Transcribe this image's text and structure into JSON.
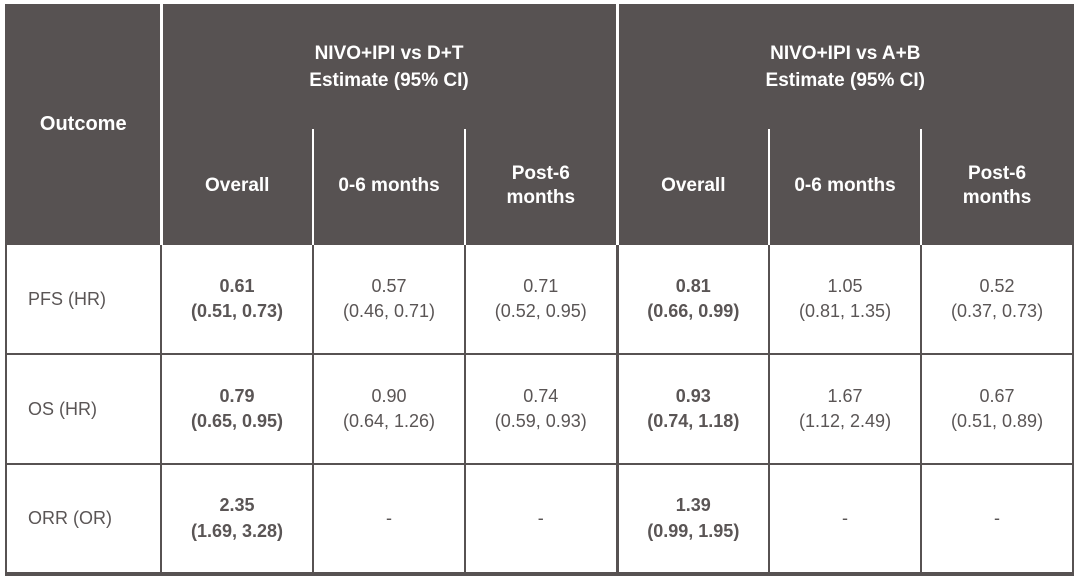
{
  "colors": {
    "header_bg": "#575252",
    "grid": "#575252",
    "body_text": "#5a5555",
    "header_text": "#ffffff",
    "background": "#ffffff"
  },
  "chart_data": {
    "type": "table",
    "header": {
      "outcome": "Outcome",
      "groups": [
        {
          "title": "NIVO+IPI vs D+T",
          "subtitle": "Estimate (95% CI)",
          "columns": [
            "Overall",
            "0-6 months",
            "Post-6 months"
          ]
        },
        {
          "title": "NIVO+IPI vs A+B",
          "subtitle": "Estimate (95% CI)",
          "columns": [
            "Overall",
            "0-6 months",
            "Post-6 months"
          ]
        }
      ]
    },
    "rows": [
      {
        "outcome": "PFS (HR)",
        "values": [
          {
            "estimate": "0.61",
            "ci": "(0.51, 0.73)"
          },
          {
            "estimate": "0.57",
            "ci": "(0.46, 0.71)"
          },
          {
            "estimate": "0.71",
            "ci": "(0.52, 0.95)"
          },
          {
            "estimate": "0.81",
            "ci": "(0.66, 0.99)"
          },
          {
            "estimate": "1.05",
            "ci": "(0.81, 1.35)"
          },
          {
            "estimate": "0.52",
            "ci": "(0.37, 0.73)"
          }
        ]
      },
      {
        "outcome": "OS (HR)",
        "values": [
          {
            "estimate": "0.79",
            "ci": "(0.65, 0.95)"
          },
          {
            "estimate": "0.90",
            "ci": "(0.64, 1.26)"
          },
          {
            "estimate": "0.74",
            "ci": "(0.59, 0.93)"
          },
          {
            "estimate": "0.93",
            "ci": "(0.74, 1.18)"
          },
          {
            "estimate": "1.67",
            "ci": "(1.12, 2.49)"
          },
          {
            "estimate": "0.67",
            "ci": "(0.51, 0.89)"
          }
        ]
      },
      {
        "outcome": "ORR (OR)",
        "values": [
          {
            "estimate": "2.35",
            "ci": "(1.69, 3.28)"
          },
          {
            "estimate": "-",
            "ci": ""
          },
          {
            "estimate": "-",
            "ci": ""
          },
          {
            "estimate": "1.39",
            "ci": "(0.99, 1.95)"
          },
          {
            "estimate": "-",
            "ci": ""
          },
          {
            "estimate": "-",
            "ci": ""
          }
        ]
      }
    ]
  }
}
